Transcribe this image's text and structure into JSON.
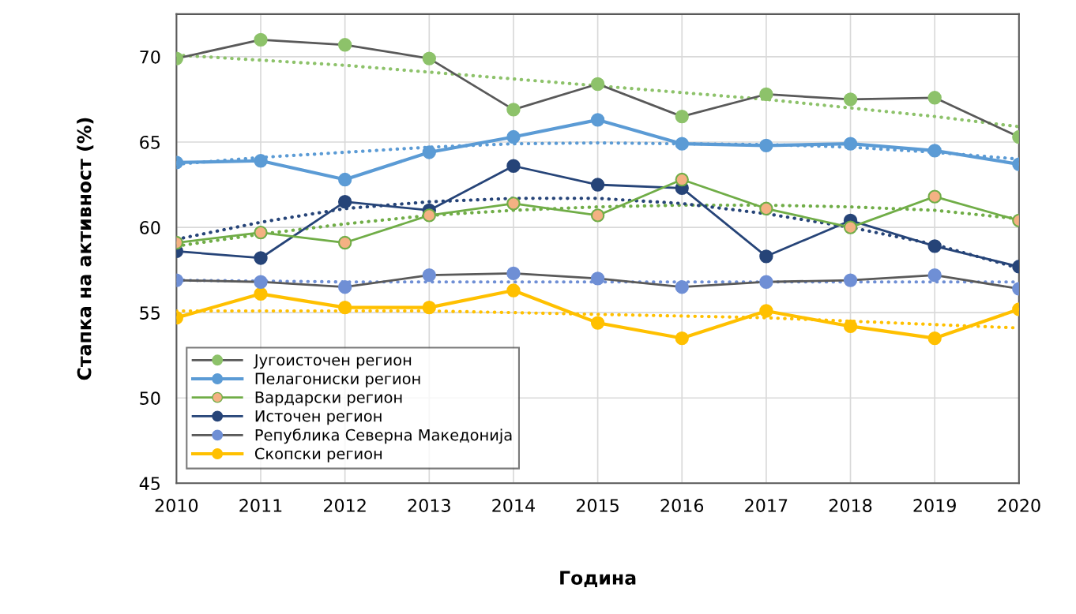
{
  "chart_data": {
    "type": "line",
    "xlabel": "Година",
    "ylabel": "Стапка на активност (%)",
    "x": [
      2010,
      2011,
      2012,
      2013,
      2014,
      2015,
      2016,
      2017,
      2018,
      2019,
      2020
    ],
    "xlim": [
      2010,
      2020
    ],
    "xticks": [
      2010,
      2011,
      2012,
      2013,
      2014,
      2015,
      2016,
      2017,
      2018,
      2019,
      2020
    ],
    "ylim": [
      45,
      72.5
    ],
    "yticks": [
      45,
      50,
      55,
      60,
      65,
      70
    ],
    "grid": true,
    "legend": "bottom left",
    "marker": "circle",
    "line_style": "solid",
    "series": [
      {
        "name": "Југоисточен регион",
        "color": "#595959",
        "colors": [
          "#8dc26a",
          "#8dc26a",
          "#8dc26a",
          "#8dc26a",
          "#8dc26a",
          "#8dc26a",
          "#8dc26a",
          "#8dc26a",
          "#8dc26a",
          "#8dc26a",
          "#8dc26a"
        ],
        "values": [
          69.9,
          71.0,
          70.7,
          69.9,
          66.9,
          68.4,
          66.5,
          67.8,
          67.5,
          67.6,
          65.3
        ]
      },
      {
        "name": "Пелагониски регион",
        "color": "#5b9bd5",
        "values": [
          63.8,
          63.9,
          62.8,
          64.4,
          65.3,
          66.3,
          64.9,
          64.8,
          64.9,
          64.5,
          63.7
        ]
      },
      {
        "name": "Вардарски регион",
        "color": "#70ad47",
        "colors": [
          "#f4b183",
          "#f4b183",
          "#f4b183",
          "#f4b183",
          "#f4b183",
          "#f4b183",
          "#f4b183",
          "#f4b183",
          "#f4b183",
          "#f4b183",
          "#f4b183"
        ],
        "values": [
          59.1,
          59.7,
          59.1,
          60.7,
          61.4,
          60.7,
          62.8,
          61.1,
          60.0,
          61.8,
          60.4
        ]
      },
      {
        "name": "Источен регион",
        "color": "#264478",
        "values": [
          58.6,
          58.2,
          61.5,
          61.0,
          63.6,
          62.5,
          62.3,
          58.3,
          60.4,
          58.9,
          57.7
        ]
      },
      {
        "name": "Република Северна Македонија",
        "color": "#595959",
        "colors": [
          "#6f8fd5",
          "#6f8fd5",
          "#6f8fd5",
          "#6f8fd5",
          "#6f8fd5",
          "#6f8fd5",
          "#6f8fd5",
          "#6f8fd5",
          "#6f8fd5",
          "#6f8fd5",
          "#6f8fd5"
        ],
        "values": [
          56.9,
          56.8,
          56.5,
          57.2,
          57.3,
          57.0,
          56.5,
          56.8,
          56.9,
          57.2,
          56.4
        ]
      },
      {
        "name": "Скопски регион",
        "color": "#ffc000",
        "values": [
          54.7,
          56.1,
          55.3,
          55.3,
          56.3,
          54.4,
          53.5,
          55.1,
          54.2,
          53.5,
          55.2
        ]
      },
      {
        "color": "#8dc26a",
        "marker": "none",
        "line_style": "dotted",
        "values": [
          70.1,
          69.8,
          69.5,
          69.1,
          68.7,
          68.3,
          67.9,
          67.5,
          67.0,
          66.5,
          65.9
        ]
      },
      {
        "color": "#5b9bd5",
        "marker": "none",
        "line_style": "dotted",
        "values": [
          63.7,
          64.1,
          64.4,
          64.7,
          64.9,
          64.95,
          64.9,
          64.85,
          64.7,
          64.4,
          64.0
        ]
      },
      {
        "color": "#70ad47",
        "marker": "none",
        "line_style": "dotted",
        "values": [
          58.9,
          59.6,
          60.2,
          60.7,
          61.0,
          61.2,
          61.3,
          61.3,
          61.2,
          61.0,
          60.5
        ]
      },
      {
        "color": "#264478",
        "marker": "none",
        "line_style": "dotted",
        "values": [
          59.3,
          60.3,
          61.1,
          61.5,
          61.7,
          61.7,
          61.4,
          60.8,
          60.0,
          59.0,
          57.6
        ]
      },
      {
        "color": "#6f8fd5",
        "marker": "none",
        "line_style": "dotted",
        "values": [
          56.9,
          56.85,
          56.8,
          56.8,
          56.8,
          56.8,
          56.8,
          56.8,
          56.8,
          56.8,
          56.8
        ]
      },
      {
        "color": "#ffc000",
        "marker": "none",
        "line_style": "dotted",
        "values": [
          55.1,
          55.1,
          55.1,
          55.1,
          55.0,
          54.9,
          54.8,
          54.7,
          54.5,
          54.3,
          54.1
        ]
      }
    ]
  }
}
